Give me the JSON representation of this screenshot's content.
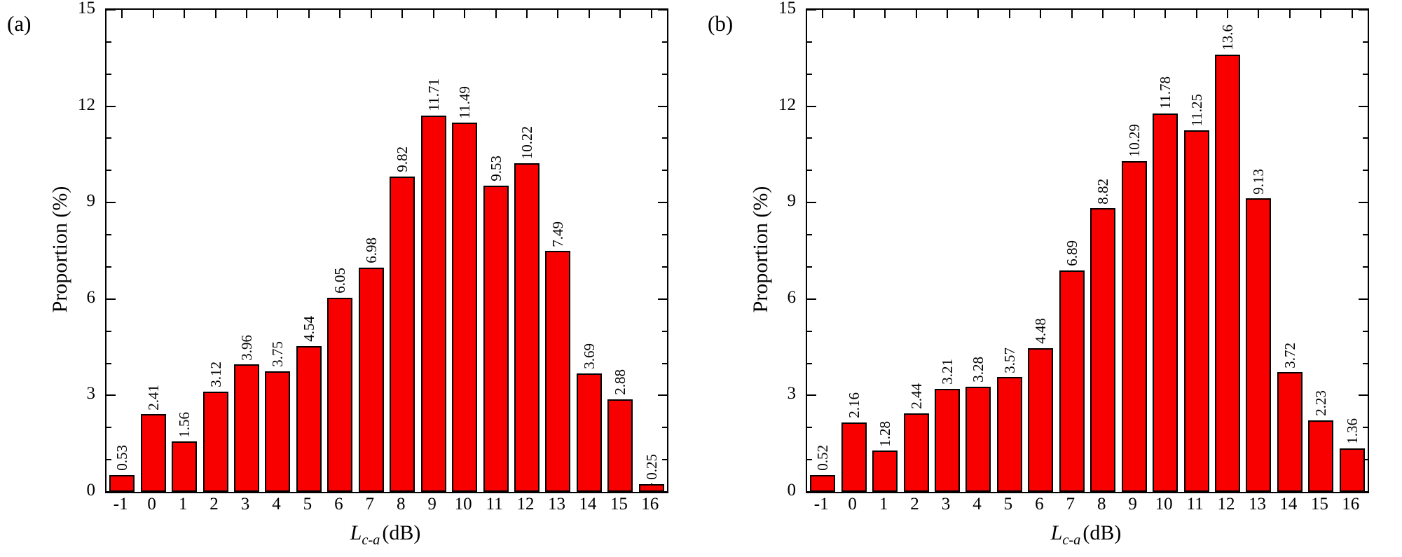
{
  "figure": {
    "background_color": "#ffffff",
    "axis_color": "#000000"
  },
  "chart_data": [
    {
      "type": "bar",
      "panel_label": "(a)",
      "title": "",
      "ylabel": "Proportion (%)",
      "xlabel": "L c-a (dB)",
      "xlabel_parts": {
        "var": "L",
        "sub": "c-a",
        "unit": "(dB)"
      },
      "ylim": [
        0,
        15
      ],
      "yticks": [
        0,
        3,
        6,
        9,
        12,
        15
      ],
      "ytick_minor_step": 1,
      "grid": false,
      "legend": "none",
      "bar_color": "#f80000",
      "bar_border_color": "#000000",
      "value_label_rotation": 90,
      "categories": [
        "-1",
        "0",
        "1",
        "2",
        "3",
        "4",
        "5",
        "6",
        "7",
        "8",
        "9",
        "10",
        "11",
        "12",
        "13",
        "14",
        "15",
        "16"
      ],
      "values": [
        0.53,
        2.41,
        1.56,
        3.12,
        3.96,
        3.75,
        4.54,
        6.05,
        6.98,
        9.82,
        11.71,
        11.49,
        9.53,
        10.22,
        7.49,
        3.69,
        2.88,
        0.25
      ],
      "value_labels": [
        "0.53",
        "2.41",
        "1.56",
        "3.12",
        "3.96",
        "3.75",
        "4.54",
        "6.05",
        "6.98",
        "9.82",
        "11.71",
        "11.49",
        "9.53",
        "10.22",
        "7.49",
        "3.69",
        "2.88",
        "0.25"
      ]
    },
    {
      "type": "bar",
      "panel_label": "(b)",
      "title": "",
      "ylabel": "Proportion (%)",
      "xlabel": "L c-a (dB)",
      "xlabel_parts": {
        "var": "L",
        "sub": "c-a",
        "unit": "(dB)"
      },
      "ylim": [
        0,
        15
      ],
      "yticks": [
        0,
        3,
        6,
        9,
        12,
        15
      ],
      "ytick_minor_step": 1,
      "grid": false,
      "legend": "none",
      "bar_color": "#f80000",
      "bar_border_color": "#000000",
      "value_label_rotation": 90,
      "categories": [
        "-1",
        "0",
        "1",
        "2",
        "3",
        "4",
        "5",
        "6",
        "7",
        "8",
        "9",
        "10",
        "11",
        "12",
        "13",
        "14",
        "15",
        "16"
      ],
      "values": [
        0.52,
        2.16,
        1.28,
        2.44,
        3.21,
        3.28,
        3.57,
        4.48,
        6.89,
        8.82,
        10.29,
        11.78,
        11.25,
        13.6,
        9.13,
        3.72,
        2.23,
        1.36
      ],
      "value_labels": [
        "0.52",
        "2.16",
        "1.28",
        "2.44",
        "3.21",
        "3.28",
        "3.57",
        "4.48",
        "6.89",
        "8.82",
        "10.29",
        "11.78",
        "11.25",
        "13.6",
        "9.13",
        "3.72",
        "2.23",
        "1.36"
      ]
    }
  ]
}
